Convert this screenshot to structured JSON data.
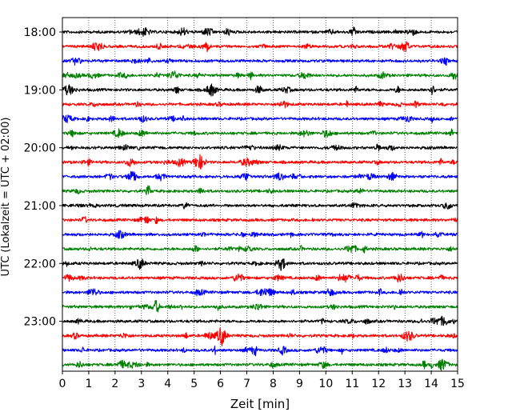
{
  "chart_data": {
    "type": "line",
    "title": "",
    "xlabel": "Zeit  [min]",
    "ylabel": "UTC (Lokalzeit = UTC + 02:00)",
    "xlim": [
      0,
      15
    ],
    "x_ticks": [
      "0",
      "1",
      "2",
      "3",
      "4",
      "5",
      "6",
      "7",
      "8",
      "9",
      "10",
      "11",
      "12",
      "13",
      "14",
      "15"
    ],
    "y_tick_labels": [
      "18:00",
      "19:00",
      "20:00",
      "21:00",
      "22:00",
      "23:00"
    ],
    "grid": "vertical dotted lines at each minute",
    "trace_colors": [
      "#000000",
      "#ff0000",
      "#0000ff",
      "#008000"
    ],
    "trace_start_times": [
      "18:00",
      "18:15",
      "18:30",
      "18:45",
      "19:00",
      "19:15",
      "19:30",
      "19:45",
      "20:00",
      "20:15",
      "20:30",
      "20:45",
      "21:00",
      "21:15",
      "21:30",
      "21:45",
      "22:00",
      "22:15",
      "22:30",
      "22:45",
      "23:00",
      "23:15",
      "23:30",
      "23:45"
    ],
    "trace_duration_min": 15
  }
}
